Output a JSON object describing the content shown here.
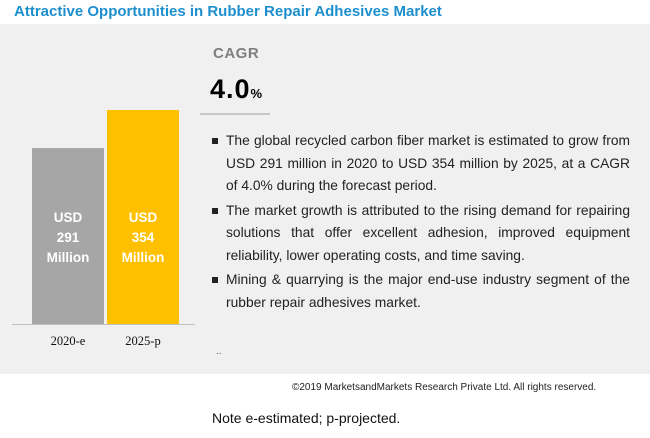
{
  "title": "Attractive Opportunities in Rubber Repair Adhesives Market",
  "cagr": {
    "label": "CAGR",
    "value": "4.0",
    "unit": "%"
  },
  "bullets": [
    "The global recycled carbon fiber market is estimated to grow from  USD 291 million in 2020 to USD 354 million by 2025, at a CAGR of 4.0% during the forecast period.",
    " The market growth is attributed to the rising demand for repairing solutions that offer excellent adhesion, improved equipment reliability, lower operating costs, and time saving.",
    "Mining & quarrying is the major end-use industry segment of the rubber repair adhesives market."
  ],
  "continuation": "..",
  "copyright": "©2019 MarketsandMarkets Research Private Ltd. All rights reserved.",
  "note": "Note e-estimated; p-projected.",
  "colors": {
    "title": "#1e8fcd",
    "bar_2020": "#a6a6a6",
    "bar_2025": "#ffc000",
    "panel": "#f0f0f0"
  },
  "chart_data": {
    "type": "bar",
    "categories": [
      "2020-e",
      "2025-p"
    ],
    "values": [
      291,
      354
    ],
    "data_labels": [
      [
        "USD",
        "291",
        "Million"
      ],
      [
        "USD",
        "354",
        "Million"
      ]
    ],
    "ylim": [
      0,
      354
    ],
    "grid": false,
    "xlabel": "",
    "ylabel": ""
  }
}
